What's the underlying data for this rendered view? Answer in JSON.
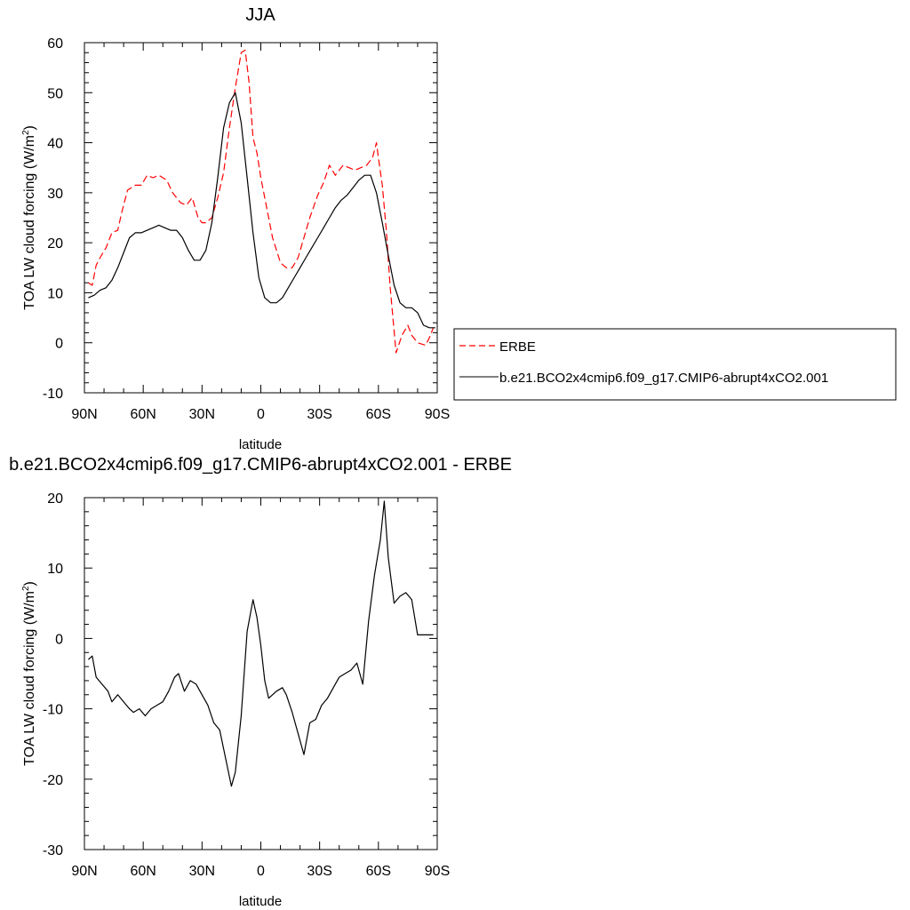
{
  "chart_data": [
    {
      "type": "line",
      "title": "JJA",
      "xlabel": "latitude",
      "ylabel_main": "TOA LW cloud forcing (W/m",
      "ylabel_sup": "2",
      "ylabel_close": ")",
      "xlim": [
        90,
        -90
      ],
      "ylim": [
        -10,
        60
      ],
      "x_ticks": [
        90,
        60,
        30,
        0,
        -30,
        -60,
        -90
      ],
      "x_tick_labels": [
        "90N",
        "60N",
        "30N",
        "0",
        "30S",
        "60S",
        "90S"
      ],
      "y_ticks": [
        -10,
        0,
        10,
        20,
        30,
        40,
        50,
        60
      ],
      "y_tick_labels": [
        "-10",
        "0",
        "10",
        "20",
        "30",
        "40",
        "50",
        "60"
      ],
      "legend_position": "right",
      "series": [
        {
          "name": "ERBE",
          "color": "#ff0000",
          "dash": "dashed",
          "x": [
            88,
            86,
            84,
            82,
            79,
            76,
            73,
            71,
            68,
            64,
            61,
            58,
            55,
            52,
            48,
            45,
            41,
            38,
            35,
            32,
            30,
            28,
            25,
            22,
            19,
            16,
            13,
            10,
            8,
            6,
            4,
            2,
            0,
            -3,
            -6,
            -10,
            -13,
            -16,
            -19,
            -22,
            -25,
            -29,
            -32,
            -35,
            -38,
            -42,
            -45,
            -48,
            -51,
            -54,
            -57,
            -59,
            -60,
            -62,
            -64,
            -66,
            -69,
            -72,
            -75,
            -77,
            -80,
            -84,
            -86,
            -88
          ],
          "y": [
            12,
            11.5,
            15.5,
            17,
            19,
            22,
            22.5,
            26,
            30.5,
            31.5,
            31.5,
            33.5,
            33,
            33.5,
            32.5,
            30,
            28,
            27.5,
            29,
            25,
            24,
            24,
            25,
            29,
            34,
            43,
            51,
            58,
            58.5,
            52,
            41,
            38,
            33,
            27,
            21,
            16,
            15,
            15,
            17,
            21,
            25,
            29.5,
            32,
            35.5,
            33.5,
            35.5,
            35,
            34.5,
            35,
            35.5,
            37,
            40,
            37,
            31.5,
            22.5,
            11,
            -2,
            1.5,
            3.5,
            1.5,
            0,
            -0.5,
            1,
            3
          ]
        },
        {
          "name": "b.e21.BCO2x4cmip6.f09_g17.CMIP6-abrupt4xCO2.001",
          "color": "#000000",
          "dash": "solid",
          "x": [
            88,
            85,
            82,
            79,
            76,
            73,
            70,
            67,
            64,
            61,
            58,
            55,
            52,
            49,
            46,
            43,
            40,
            37,
            34,
            31,
            28,
            25,
            22,
            19,
            16,
            13,
            10,
            7,
            4,
            1,
            -2,
            -5,
            -8,
            -11,
            -14,
            -17,
            -20,
            -23,
            -26,
            -29,
            -32,
            -35,
            -38,
            -41,
            -44,
            -47,
            -50,
            -53,
            -56,
            -59,
            -62,
            -65,
            -68,
            -71,
            -74,
            -77,
            -80,
            -83,
            -86,
            -89
          ],
          "y": [
            9,
            9.5,
            10.5,
            11,
            12.5,
            15,
            18,
            21,
            22,
            22,
            22.5,
            23,
            23.5,
            23,
            22.5,
            22.5,
            21,
            18.5,
            16.5,
            16.5,
            18.5,
            24,
            33,
            43,
            48,
            50,
            44,
            33,
            22,
            13,
            9,
            8,
            8,
            9,
            11,
            13,
            15,
            17,
            19,
            21,
            23,
            25,
            27,
            28.5,
            29.5,
            31,
            32.5,
            33.5,
            33.5,
            30,
            24,
            17.5,
            11.5,
            8,
            7,
            7,
            6,
            3.5,
            3,
            3
          ]
        }
      ]
    },
    {
      "type": "line",
      "title": "b.e21.BCO2x4cmip6.f09_g17.CMIP6-abrupt4xCO2.001 - ERBE",
      "xlabel": "latitude",
      "ylabel_main": "TOA LW cloud forcing (W/m",
      "ylabel_sup": "2",
      "ylabel_close": ")",
      "xlim": [
        90,
        -90
      ],
      "ylim": [
        -30,
        20
      ],
      "x_ticks": [
        90,
        60,
        30,
        0,
        -30,
        -60,
        -90
      ],
      "x_tick_labels": [
        "90N",
        "60N",
        "30N",
        "0",
        "30S",
        "60S",
        "90S"
      ],
      "y_ticks": [
        -30,
        -20,
        -10,
        0,
        10,
        20
      ],
      "y_tick_labels": [
        "-30",
        "-20",
        "-10",
        "0",
        "10",
        "20"
      ],
      "series": [
        {
          "color": "#000000",
          "dash": "solid",
          "x": [
            88,
            86,
            84,
            81,
            78,
            76,
            73,
            70,
            67,
            65,
            62,
            59,
            56,
            53,
            50,
            47,
            44,
            42,
            39,
            36,
            33,
            30,
            27,
            24,
            21,
            18,
            15,
            13,
            10,
            7,
            4,
            2,
            0,
            -2,
            -4,
            -6,
            -8,
            -11,
            -13,
            -16,
            -19,
            -22,
            -25,
            -28,
            -31,
            -34,
            -37,
            -40,
            -43,
            -46,
            -49,
            -52,
            -55,
            -58,
            -61,
            -63,
            -65,
            -68,
            -71,
            -74,
            -77,
            -80,
            -83,
            -86,
            -88
          ],
          "y": [
            -3,
            -2.5,
            -5.5,
            -6.5,
            -7.5,
            -9,
            -8,
            -9,
            -10,
            -10.5,
            -10,
            -11,
            -10,
            -9.5,
            -9,
            -7.5,
            -5.5,
            -5,
            -7.5,
            -6,
            -6.5,
            -8,
            -9.5,
            -12,
            -13,
            -17,
            -21,
            -19,
            -11,
            1,
            5.5,
            3,
            -1,
            -6,
            -8.5,
            -8,
            -7.5,
            -7,
            -8,
            -10.5,
            -13.5,
            -16.5,
            -12,
            -11.5,
            -9.5,
            -8.5,
            -7,
            -5.5,
            -5,
            -4.5,
            -3.5,
            -6.5,
            2.5,
            9,
            14,
            19.5,
            11.5,
            5,
            6,
            6.5,
            5.5,
            0.5,
            0.5,
            0.5,
            0.5
          ]
        }
      ]
    }
  ]
}
